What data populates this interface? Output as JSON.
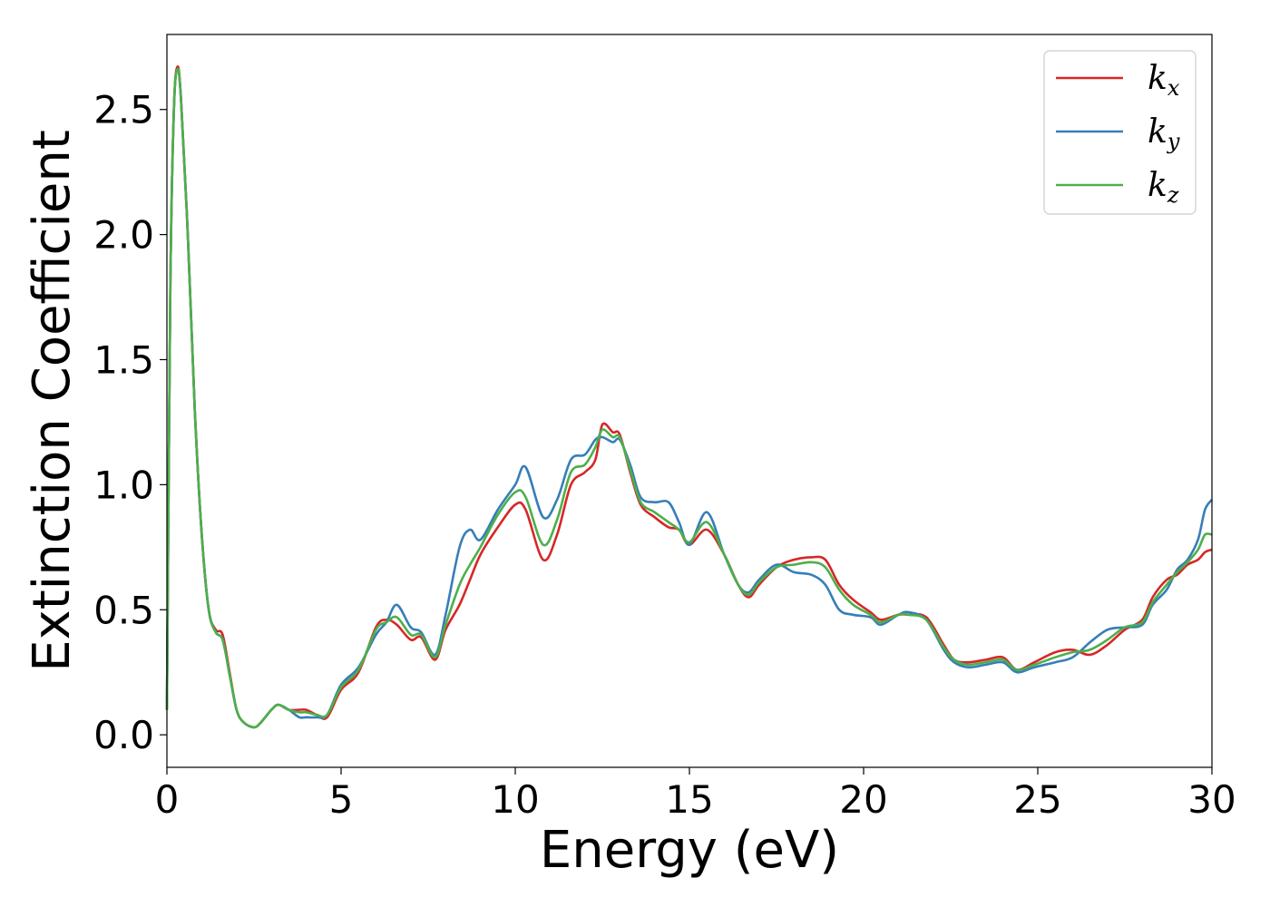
{
  "chart_data": {
    "type": "line",
    "title": "",
    "xlabel": "Energy (eV)",
    "ylabel": "Extinction Coefficient",
    "xlim": [
      0,
      30
    ],
    "ylim": [
      -0.13,
      2.8
    ],
    "xticks": [
      0,
      5,
      10,
      15,
      20,
      25,
      30
    ],
    "xtick_labels": [
      "0",
      "5",
      "10",
      "15",
      "20",
      "25",
      "30"
    ],
    "yticks": [
      0.0,
      0.5,
      1.0,
      1.5,
      2.0,
      2.5
    ],
    "ytick_labels": [
      "0.0",
      "0.5",
      "1.0",
      "1.5",
      "2.0",
      "2.5"
    ],
    "grid": false,
    "legend_position": "top-right",
    "x": [
      0,
      0.1,
      0.2,
      0.3,
      0.4,
      0.6,
      0.8,
      1.0,
      1.2,
      1.4,
      1.6,
      1.8,
      2.0,
      2.2,
      2.5,
      2.7,
      3.0,
      3.2,
      3.5,
      3.8,
      4.0,
      4.3,
      4.6,
      5.0,
      5.5,
      6.0,
      6.3,
      6.6,
      7.0,
      7.3,
      7.7,
      8.0,
      8.4,
      8.7,
      9.0,
      9.5,
      10.0,
      10.3,
      10.8,
      11.2,
      11.6,
      12.0,
      12.3,
      12.5,
      12.8,
      13.0,
      13.3,
      13.6,
      14.0,
      14.4,
      14.7,
      15.0,
      15.5,
      16.0,
      16.4,
      16.7,
      17.0,
      17.5,
      18.0,
      18.5,
      18.9,
      19.3,
      19.7,
      20.2,
      20.5,
      21.0,
      21.3,
      21.8,
      22.3,
      22.6,
      23.0,
      23.5,
      24.0,
      24.4,
      24.9,
      25.5,
      26.0,
      26.5,
      27.0,
      27.5,
      28.0,
      28.3,
      28.7,
      29.0,
      29.3,
      29.6,
      29.8,
      30.0
    ],
    "series": [
      {
        "name": "k_x",
        "color": "#d62728",
        "values": [
          0.1,
          1.8,
          2.5,
          2.67,
          2.55,
          2.0,
          1.3,
          0.8,
          0.5,
          0.42,
          0.4,
          0.25,
          0.1,
          0.05,
          0.03,
          0.05,
          0.1,
          0.12,
          0.1,
          0.1,
          0.1,
          0.08,
          0.07,
          0.18,
          0.25,
          0.43,
          0.46,
          0.44,
          0.38,
          0.39,
          0.3,
          0.42,
          0.52,
          0.62,
          0.72,
          0.83,
          0.92,
          0.9,
          0.7,
          0.8,
          1.0,
          1.05,
          1.1,
          1.24,
          1.21,
          1.2,
          1.05,
          0.92,
          0.87,
          0.83,
          0.82,
          0.76,
          0.82,
          0.72,
          0.6,
          0.55,
          0.6,
          0.67,
          0.7,
          0.71,
          0.7,
          0.6,
          0.54,
          0.49,
          0.46,
          0.48,
          0.48,
          0.47,
          0.36,
          0.3,
          0.29,
          0.3,
          0.31,
          0.26,
          0.29,
          0.33,
          0.34,
          0.32,
          0.36,
          0.42,
          0.46,
          0.55,
          0.62,
          0.64,
          0.68,
          0.7,
          0.73,
          0.74
        ]
      },
      {
        "name": "k_y",
        "color": "#377eb8",
        "values": [
          0.1,
          1.8,
          2.5,
          2.66,
          2.55,
          2.0,
          1.3,
          0.8,
          0.5,
          0.41,
          0.38,
          0.24,
          0.1,
          0.05,
          0.03,
          0.05,
          0.1,
          0.12,
          0.1,
          0.07,
          0.07,
          0.07,
          0.08,
          0.2,
          0.27,
          0.4,
          0.45,
          0.52,
          0.43,
          0.41,
          0.32,
          0.48,
          0.75,
          0.82,
          0.78,
          0.9,
          1.0,
          1.07,
          0.87,
          0.94,
          1.1,
          1.12,
          1.18,
          1.19,
          1.17,
          1.18,
          1.08,
          0.95,
          0.93,
          0.93,
          0.85,
          0.76,
          0.89,
          0.72,
          0.6,
          0.57,
          0.62,
          0.68,
          0.65,
          0.64,
          0.6,
          0.5,
          0.48,
          0.47,
          0.44,
          0.48,
          0.49,
          0.46,
          0.34,
          0.29,
          0.27,
          0.28,
          0.29,
          0.25,
          0.27,
          0.29,
          0.31,
          0.37,
          0.42,
          0.43,
          0.44,
          0.52,
          0.58,
          0.66,
          0.7,
          0.78,
          0.9,
          0.94
        ]
      },
      {
        "name": "k_z",
        "color": "#4daf4a",
        "values": [
          0.1,
          1.8,
          2.5,
          2.66,
          2.55,
          2.0,
          1.3,
          0.8,
          0.5,
          0.41,
          0.38,
          0.24,
          0.1,
          0.05,
          0.03,
          0.05,
          0.1,
          0.12,
          0.1,
          0.09,
          0.09,
          0.08,
          0.08,
          0.19,
          0.26,
          0.42,
          0.45,
          0.47,
          0.4,
          0.4,
          0.31,
          0.44,
          0.6,
          0.68,
          0.75,
          0.88,
          0.97,
          0.95,
          0.76,
          0.86,
          1.05,
          1.08,
          1.15,
          1.22,
          1.19,
          1.19,
          1.06,
          0.93,
          0.89,
          0.85,
          0.82,
          0.77,
          0.85,
          0.72,
          0.6,
          0.56,
          0.61,
          0.67,
          0.68,
          0.69,
          0.67,
          0.58,
          0.52,
          0.48,
          0.45,
          0.48,
          0.48,
          0.46,
          0.35,
          0.3,
          0.28,
          0.29,
          0.3,
          0.26,
          0.28,
          0.31,
          0.33,
          0.34,
          0.38,
          0.43,
          0.45,
          0.53,
          0.6,
          0.65,
          0.69,
          0.74,
          0.8,
          0.8
        ]
      }
    ]
  }
}
